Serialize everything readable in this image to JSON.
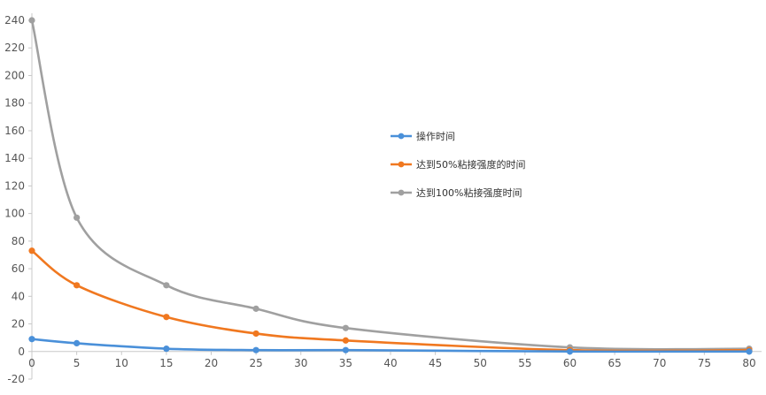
{
  "chart_data": {
    "type": "line",
    "title": "",
    "xlabel": "",
    "ylabel": "",
    "xlim": [
      0,
      80
    ],
    "ylim": [
      -20,
      240
    ],
    "x_ticks": [
      "0",
      "5",
      "10",
      "15",
      "20",
      "25",
      "30",
      "35",
      "40",
      "45",
      "50",
      "55",
      "60",
      "65",
      "70",
      "75",
      "80"
    ],
    "y_ticks": [
      "-20",
      "0",
      "20",
      "40",
      "60",
      "80",
      "100",
      "120",
      "140",
      "160",
      "180",
      "200",
      "220",
      "240"
    ],
    "grid": false,
    "legend_position": "right",
    "series": [
      {
        "name": "操作时间",
        "color": "#4a90d9",
        "points": [
          [
            0,
            9
          ],
          [
            5,
            6
          ],
          [
            15,
            2
          ],
          [
            25,
            1
          ],
          [
            35,
            1
          ],
          [
            60,
            0
          ],
          [
            80,
            0
          ]
        ]
      },
      {
        "name": "达到50%粘接强度的时间",
        "color": "#f07820",
        "points": [
          [
            0,
            73
          ],
          [
            5,
            48
          ],
          [
            15,
            25
          ],
          [
            25,
            13
          ],
          [
            35,
            8
          ],
          [
            60,
            1
          ],
          [
            80,
            1
          ]
        ]
      },
      {
        "name": "达到100%粘接强度时间",
        "color": "#a0a0a0",
        "points": [
          [
            0,
            240
          ],
          [
            5,
            97
          ],
          [
            15,
            48
          ],
          [
            25,
            31
          ],
          [
            35,
            17
          ],
          [
            60,
            3
          ],
          [
            80,
            2
          ]
        ]
      }
    ]
  }
}
